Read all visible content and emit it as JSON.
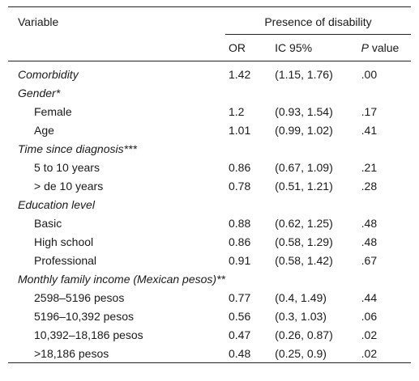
{
  "header": {
    "variable": "Variable",
    "group": "Presence of disability",
    "col_or": "OR",
    "col_ic": "IC 95%",
    "col_p_italic": "P",
    "col_p_rest": " value"
  },
  "rows": [
    {
      "label": "Comorbidity",
      "or": "1.42",
      "ic": "(1.15, 1.76)",
      "p": ".00"
    },
    {
      "label": "Gender*"
    },
    {
      "label": "Female",
      "or": "1.2",
      "ic": "(0.93, 1.54)",
      "p": ".17"
    },
    {
      "label": "Age",
      "or": "1.01",
      "ic": "(0.99, 1.02)",
      "p": ".41"
    },
    {
      "label": "Time since diagnosis***"
    },
    {
      "label": "5 to 10 years",
      "or": "0.86",
      "ic": "(0.67, 1.09)",
      "p": ".21"
    },
    {
      "label": "> de 10 years",
      "or": "0.78",
      "ic": "(0.51, 1.21)",
      "p": ".28"
    },
    {
      "label": "Education level"
    },
    {
      "label": "Basic",
      "or": "0.88",
      "ic": "(0.62, 1.25)",
      "p": ".48"
    },
    {
      "label": "High school",
      "or": "0.86",
      "ic": "(0.58, 1.29)",
      "p": ".48"
    },
    {
      "label": "Professional",
      "or": "0.91",
      "ic": "(0.58, 1.42)",
      "p": ".67"
    },
    {
      "label": "Monthly family income (Mexican pesos)**"
    },
    {
      "label": "2598–5196 pesos",
      "or": "0.77",
      "ic": "(0.4, 1.49)",
      "p": ".44"
    },
    {
      "label": "5196–10,392 pesos",
      "or": "0.56",
      "ic": "(0.3, 1.03)",
      "p": ".06"
    },
    {
      "label": "10,392–18,186 pesos",
      "or": "0.47",
      "ic": "(0.26, 0.87)",
      "p": ".02"
    },
    {
      "label": ">18,186 pesos",
      "or": "0.48",
      "ic": "(0.25, 0.9)",
      "p": ".02"
    }
  ]
}
